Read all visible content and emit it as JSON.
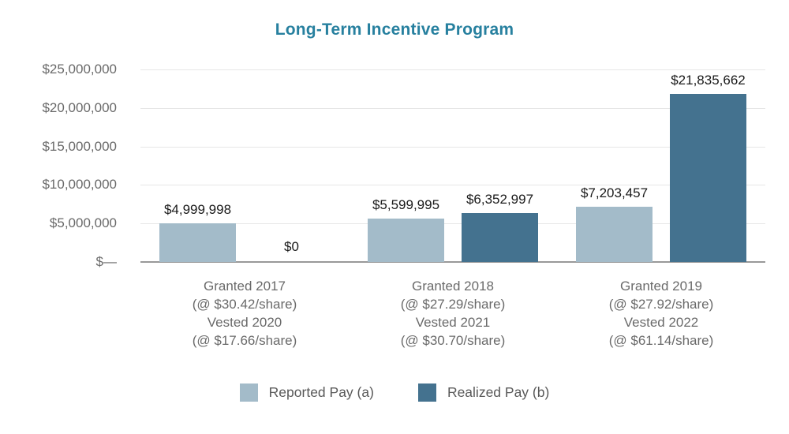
{
  "title": "Long-Term Incentive Program",
  "colors": {
    "title": "#27809F",
    "grid": "#E6E6E6",
    "baseline": "#999999",
    "axis_text": "#6A6A6A",
    "value_text": "#1A1A1A",
    "legend_text": "#595959",
    "reported": "#A3BBC9",
    "realized": "#44728F"
  },
  "chart_data": {
    "type": "bar",
    "title": "Long-Term Incentive Program",
    "xlabel": "",
    "ylabel": "",
    "ylim": [
      0,
      25000000
    ],
    "grid": true,
    "legend_position": "bottom-center",
    "y_ticks": [
      {
        "value": 25000000,
        "label": "$25,000,000"
      },
      {
        "value": 20000000,
        "label": "$20,000,000"
      },
      {
        "value": 15000000,
        "label": "$15,000,000"
      },
      {
        "value": 10000000,
        "label": "$10,000,000"
      },
      {
        "value": 5000000,
        "label": "$5,000,000"
      },
      {
        "value": 0,
        "label": "$—"
      }
    ],
    "categories": [
      {
        "key": "granted-2017",
        "lines": [
          "Granted 2017",
          "(@ $30.42/share)",
          "Vested 2020",
          "(@ $17.66/share)"
        ]
      },
      {
        "key": "granted-2018",
        "lines": [
          "Granted 2018",
          "(@ $27.29/share)",
          "Vested 2021",
          "(@ $30.70/share)"
        ]
      },
      {
        "key": "granted-2019",
        "lines": [
          "Granted 2019",
          "(@ $27.92/share)",
          "Vested 2022",
          "(@ $61.14/share)"
        ]
      }
    ],
    "series": [
      {
        "name": "Reported Pay (a)",
        "key": "reported",
        "color_key": "reported",
        "values": [
          4999998,
          5599995,
          7203457
        ],
        "value_labels": [
          "$4,999,998",
          "$5,599,995",
          "$7,203,457"
        ]
      },
      {
        "name": "Realized Pay (b)",
        "key": "realized",
        "color_key": "realized",
        "values": [
          0,
          6352997,
          21835662
        ],
        "value_labels": [
          "$0",
          "$6,352,997",
          "$21,835,662"
        ]
      }
    ]
  }
}
